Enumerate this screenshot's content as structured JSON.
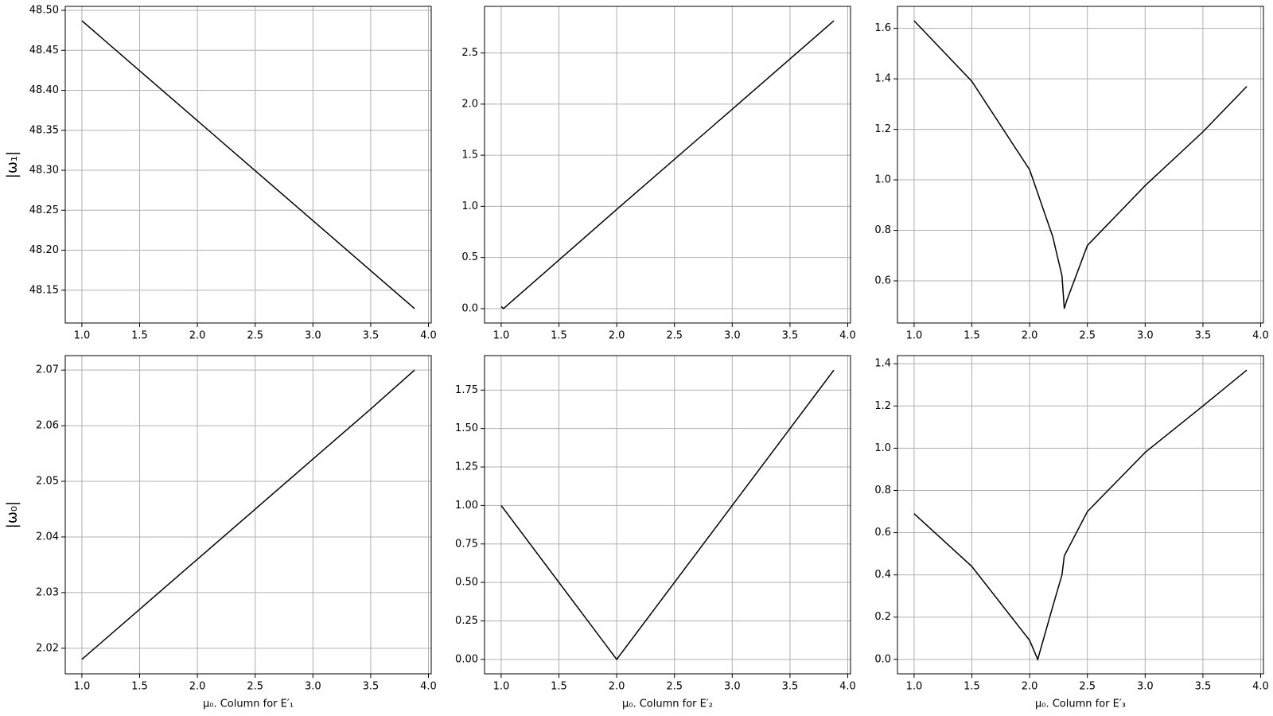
{
  "chart_data": [
    {
      "type": "line",
      "ylabel": "|ω₁|",
      "color": "#000000",
      "grid": true,
      "x": [
        1,
        1.5,
        2,
        2.5,
        3,
        3.5,
        3.88
      ],
      "values": [
        48.487,
        48.4245,
        48.362,
        48.2995,
        48.237,
        48.1745,
        48.127
      ],
      "xlim": [
        0.856,
        4.024
      ],
      "ylim": [
        48.109,
        48.505
      ],
      "xticks": [
        {
          "value": 1,
          "label": "1.0"
        },
        1.5,
        {
          "value": 2,
          "label": "2.0"
        },
        2.5,
        {
          "value": 3,
          "label": "3.0"
        },
        3.5,
        {
          "value": 4,
          "label": "4.0"
        }
      ],
      "yticks": [
        48.15,
        {
          "value": 48.2,
          "label": "48.20"
        },
        48.25,
        {
          "value": 48.3,
          "label": "48.30"
        },
        48.35,
        {
          "value": 48.4,
          "label": "48.40"
        },
        48.45,
        {
          "value": 48.5,
          "label": "48.50"
        }
      ]
    },
    {
      "type": "line",
      "color": "#000000",
      "grid": true,
      "x": [
        1,
        1.02,
        2,
        3,
        3.88
      ],
      "values": [
        0.02,
        0,
        0.97,
        1.95,
        2.815
      ],
      "xlim": [
        0.856,
        4.024
      ],
      "ylim": [
        -0.141,
        2.956
      ],
      "xticks": [
        {
          "value": 1,
          "label": "1.0"
        },
        1.5,
        {
          "value": 2,
          "label": "2.0"
        },
        2.5,
        {
          "value": 3,
          "label": "3.0"
        },
        3.5,
        {
          "value": 4,
          "label": "4.0"
        }
      ],
      "yticks": [
        {
          "value": 0,
          "label": "0.0"
        },
        0.5,
        {
          "value": 1,
          "label": "1.0"
        },
        1.5,
        {
          "value": 2,
          "label": "2.0"
        },
        2.5
      ]
    },
    {
      "type": "line",
      "color": "#000000",
      "grid": true,
      "x": [
        1,
        1.5,
        2,
        2.2,
        2.28,
        2.3,
        2.32,
        2.5,
        3,
        3.5,
        3.88
      ],
      "values": [
        1.63,
        1.39,
        1.04,
        0.775,
        0.62,
        0.49,
        0.52,
        0.74,
        0.977,
        1.19,
        1.37
      ],
      "xlim": [
        0.856,
        4.024
      ],
      "ylim": [
        0.433,
        1.687
      ],
      "xticks": [
        {
          "value": 1,
          "label": "1.0"
        },
        1.5,
        {
          "value": 2,
          "label": "2.0"
        },
        2.5,
        {
          "value": 3,
          "label": "3.0"
        },
        3.5,
        {
          "value": 4,
          "label": "4.0"
        }
      ],
      "yticks": [
        0.6,
        0.8,
        {
          "value": 1,
          "label": "1.0"
        },
        1.2,
        1.4,
        1.6
      ]
    },
    {
      "type": "line",
      "ylabel": "|ω₀|",
      "xlabel": "μ₀.  Column for E′₁",
      "color": "#000000",
      "grid": true,
      "x": [
        1,
        1.5,
        2,
        2.5,
        3,
        3.5,
        3.88
      ],
      "values": [
        2.018,
        2.027,
        2.036,
        2.045,
        2.054,
        2.063,
        2.07
      ],
      "xlim": [
        0.856,
        4.024
      ],
      "ylim": [
        2.0154,
        2.0726
      ],
      "xticks": [
        {
          "value": 1,
          "label": "1.0"
        },
        1.5,
        {
          "value": 2,
          "label": "2.0"
        },
        2.5,
        {
          "value": 3,
          "label": "3.0"
        },
        3.5,
        {
          "value": 4,
          "label": "4.0"
        }
      ],
      "yticks": [
        2.02,
        2.03,
        2.04,
        2.05,
        2.06,
        2.07
      ]
    },
    {
      "type": "line",
      "xlabel": "μ₀.  Column for E′₂",
      "color": "#000000",
      "grid": true,
      "x": [
        1,
        2,
        3.88
      ],
      "values": [
        1,
        0,
        1.88
      ],
      "xlim": [
        0.856,
        4.024
      ],
      "ylim": [
        -0.094,
        1.974
      ],
      "xticks": [
        {
          "value": 1,
          "label": "1.0"
        },
        1.5,
        {
          "value": 2,
          "label": "2.0"
        },
        2.5,
        {
          "value": 3,
          "label": "3.0"
        },
        3.5,
        {
          "value": 4,
          "label": "4.0"
        }
      ],
      "yticks": [
        {
          "value": 0,
          "label": "0.00"
        },
        0.25,
        {
          "value": 0.5,
          "label": "0.50"
        },
        0.75,
        {
          "value": 1,
          "label": "1.00"
        },
        1.25,
        {
          "value": 1.5,
          "label": "1.50"
        },
        1.75
      ]
    },
    {
      "type": "line",
      "xlabel": "μ₀.  Column for E′₃",
      "color": "#000000",
      "grid": true,
      "x": [
        1,
        1.5,
        2,
        2.07,
        2.2,
        2.28,
        2.3,
        2.5,
        3,
        3.5,
        3.88
      ],
      "values": [
        0.69,
        0.44,
        0.09,
        0,
        0.25,
        0.4,
        0.49,
        0.7,
        0.98,
        1.2,
        1.37
      ],
      "xlim": [
        0.856,
        4.024
      ],
      "ylim": [
        -0.0685,
        1.4385
      ],
      "xticks": [
        {
          "value": 1,
          "label": "1.0"
        },
        1.5,
        {
          "value": 2,
          "label": "2.0"
        },
        2.5,
        {
          "value": 3,
          "label": "3.0"
        },
        3.5,
        {
          "value": 4,
          "label": "4.0"
        }
      ],
      "yticks": [
        {
          "value": 0,
          "label": "0.0"
        },
        0.2,
        0.4,
        0.6,
        0.8,
        {
          "value": 1,
          "label": "1.0"
        },
        1.2,
        1.4
      ]
    }
  ]
}
